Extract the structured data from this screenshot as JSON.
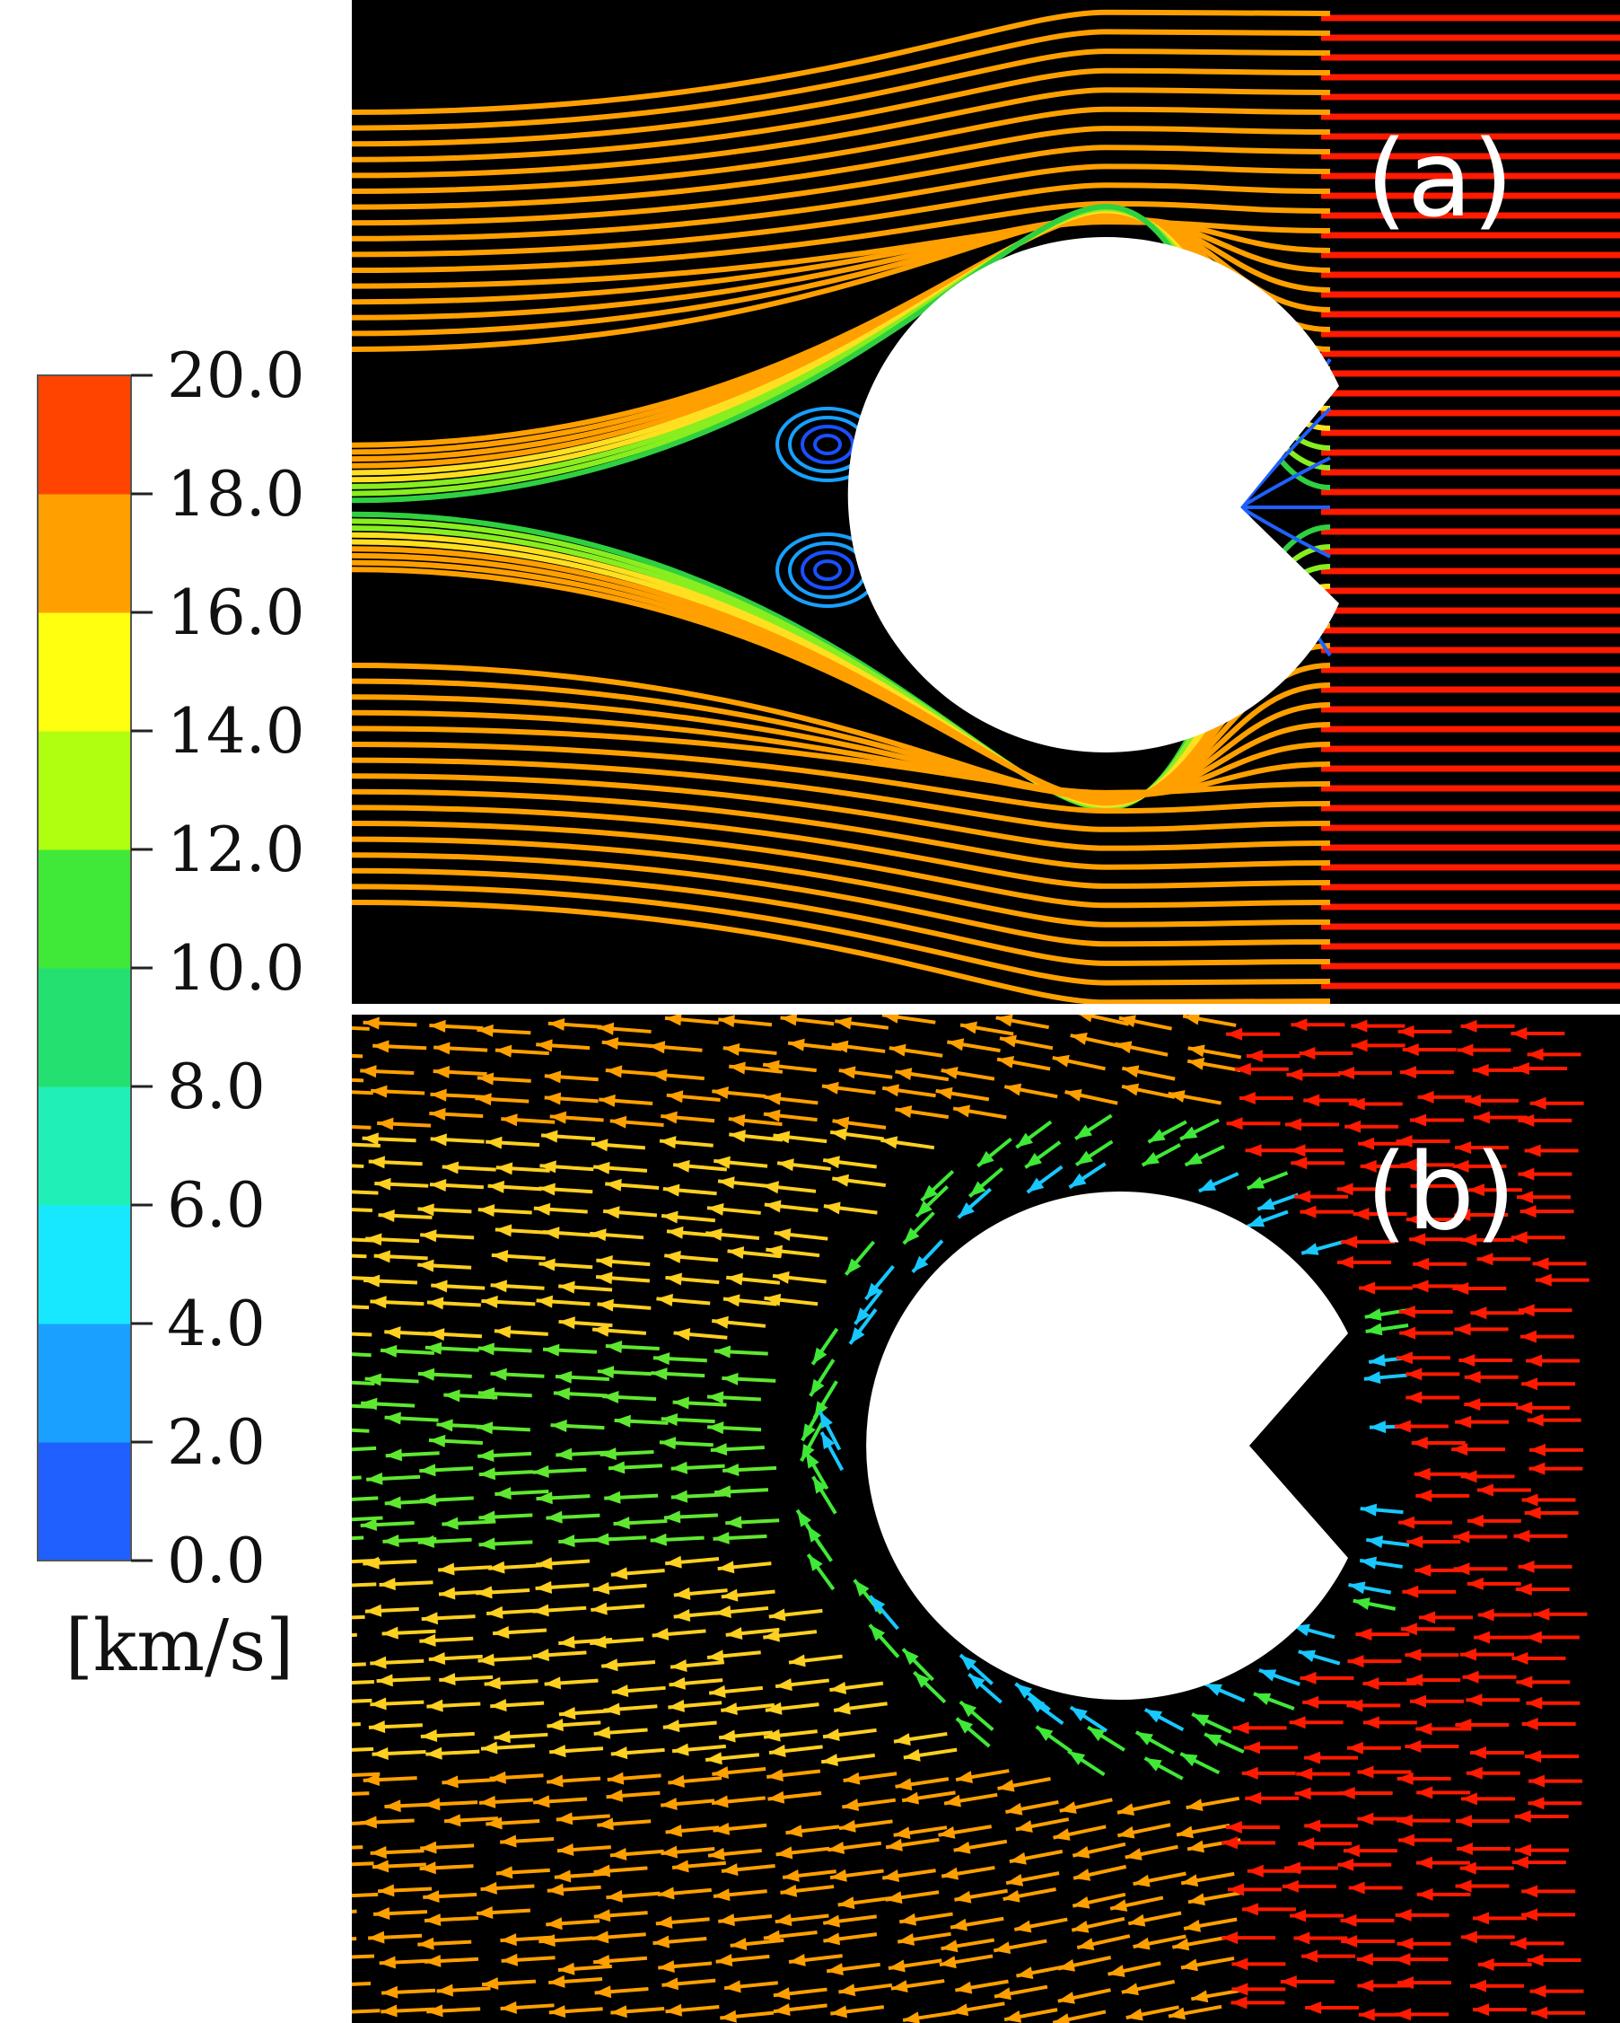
{
  "colorbar": {
    "colors": [
      "#2060ff",
      "#1aa0ff",
      "#18e8ff",
      "#20f0b8",
      "#24e070",
      "#40e838",
      "#b0ff10",
      "#ffff10",
      "#ffa000",
      "#ff4400"
    ],
    "ticks": [
      "0.0",
      "2.0",
      "4.0",
      "6.0",
      "8.0",
      "10.0",
      "12.0",
      "14.0",
      "16.0",
      "18.0",
      "20.0"
    ],
    "unit": "[km/s]"
  },
  "panels": {
    "a": {
      "label": "(a)"
    },
    "b": {
      "label": "(b)"
    }
  }
}
